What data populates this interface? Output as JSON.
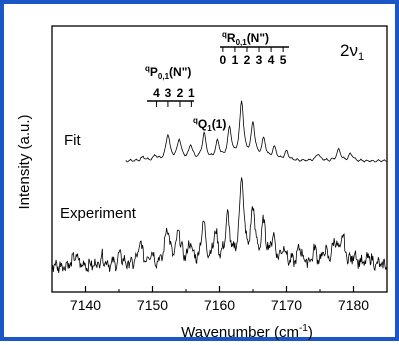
{
  "chart_data": {
    "type": "line",
    "title": "",
    "xlabel": "Wavenumber (cm-1)",
    "ylabel": "Intensity (a.u.)",
    "xlim": [
      7135,
      7185
    ],
    "x_ticks": [
      7140,
      7150,
      7160,
      7170,
      7180
    ],
    "x_tick_labels": [
      "7140",
      "7150",
      "7160",
      "7170",
      "7180"
    ],
    "y_ticks_shown": false,
    "grid": false,
    "legend": "none",
    "band_label": "2ν1",
    "series": [
      {
        "name": "Fit",
        "note_offset": "upper trace"
      },
      {
        "name": "Experiment",
        "note_offset": "lower trace"
      }
    ],
    "fit_peaks": [
      {
        "x": 7152.3,
        "h": 0.45
      },
      {
        "x": 7154.0,
        "h": 0.36
      },
      {
        "x": 7155.7,
        "h": 0.25
      },
      {
        "x": 7157.7,
        "h": 0.46
      },
      {
        "x": 7159.7,
        "h": 0.32
      },
      {
        "x": 7161.5,
        "h": 0.55
      },
      {
        "x": 7163.3,
        "h": 1.0
      },
      {
        "x": 7165.0,
        "h": 0.62
      },
      {
        "x": 7166.6,
        "h": 0.36
      },
      {
        "x": 7168.2,
        "h": 0.22
      },
      {
        "x": 7170.0,
        "h": 0.16
      },
      {
        "x": 7174.7,
        "h": 0.12
      },
      {
        "x": 7177.8,
        "h": 0.2
      },
      {
        "x": 7179.6,
        "h": 0.12
      },
      {
        "x": 7148.6,
        "h": 0.06
      },
      {
        "x": 7150.4,
        "h": 0.08
      }
    ],
    "experiment_peaks": [
      {
        "x": 7138.5,
        "h": 0.12
      },
      {
        "x": 7142.5,
        "h": 0.1
      },
      {
        "x": 7145.2,
        "h": 0.12
      },
      {
        "x": 7148.2,
        "h": 0.24
      },
      {
        "x": 7149.8,
        "h": 0.14
      },
      {
        "x": 7152.2,
        "h": 0.44
      },
      {
        "x": 7153.9,
        "h": 0.36
      },
      {
        "x": 7155.6,
        "h": 0.22
      },
      {
        "x": 7157.6,
        "h": 0.48
      },
      {
        "x": 7159.4,
        "h": 0.34
      },
      {
        "x": 7161.2,
        "h": 0.52
      },
      {
        "x": 7163.3,
        "h": 0.98
      },
      {
        "x": 7165.0,
        "h": 0.6
      },
      {
        "x": 7166.6,
        "h": 0.44
      },
      {
        "x": 7168.0,
        "h": 0.3
      },
      {
        "x": 7169.6,
        "h": 0.2
      },
      {
        "x": 7172.0,
        "h": 0.2
      },
      {
        "x": 7174.2,
        "h": 0.16
      },
      {
        "x": 7175.7,
        "h": 0.14
      },
      {
        "x": 7177.2,
        "h": 0.28
      },
      {
        "x": 7178.4,
        "h": 0.3
      },
      {
        "x": 7180.2,
        "h": 0.12
      },
      {
        "x": 7182.4,
        "h": 0.1
      }
    ]
  },
  "labels": {
    "band": "2ν1",
    "fit": "Fit",
    "experiment": "Experiment",
    "ylabel": "Intensity (a.u.)",
    "xlabel": "Wavenumber (cm",
    "xlabel_exp": "-1",
    "xlabel_close": ")",
    "R_branch": {
      "pre": "q",
      "main": "R",
      "sub": "0,1",
      "post": "(N\")",
      "numbers": [
        "0",
        "1",
        "2",
        "3",
        "4",
        "5"
      ],
      "x": [
        7160.5,
        7162.3,
        7164.1,
        7165.9,
        7167.7,
        7169.5
      ]
    },
    "P_branch": {
      "pre": "q",
      "main": "P",
      "sub": "0,1",
      "post": "(N\")",
      "numbers": [
        "4",
        "3",
        "2",
        "1"
      ],
      "x": [
        7150.6,
        7152.3,
        7154.1,
        7155.8
      ]
    },
    "Q_branch": {
      "pre": "q",
      "main": "Q",
      "sub": "1",
      "post": "(1)"
    }
  }
}
